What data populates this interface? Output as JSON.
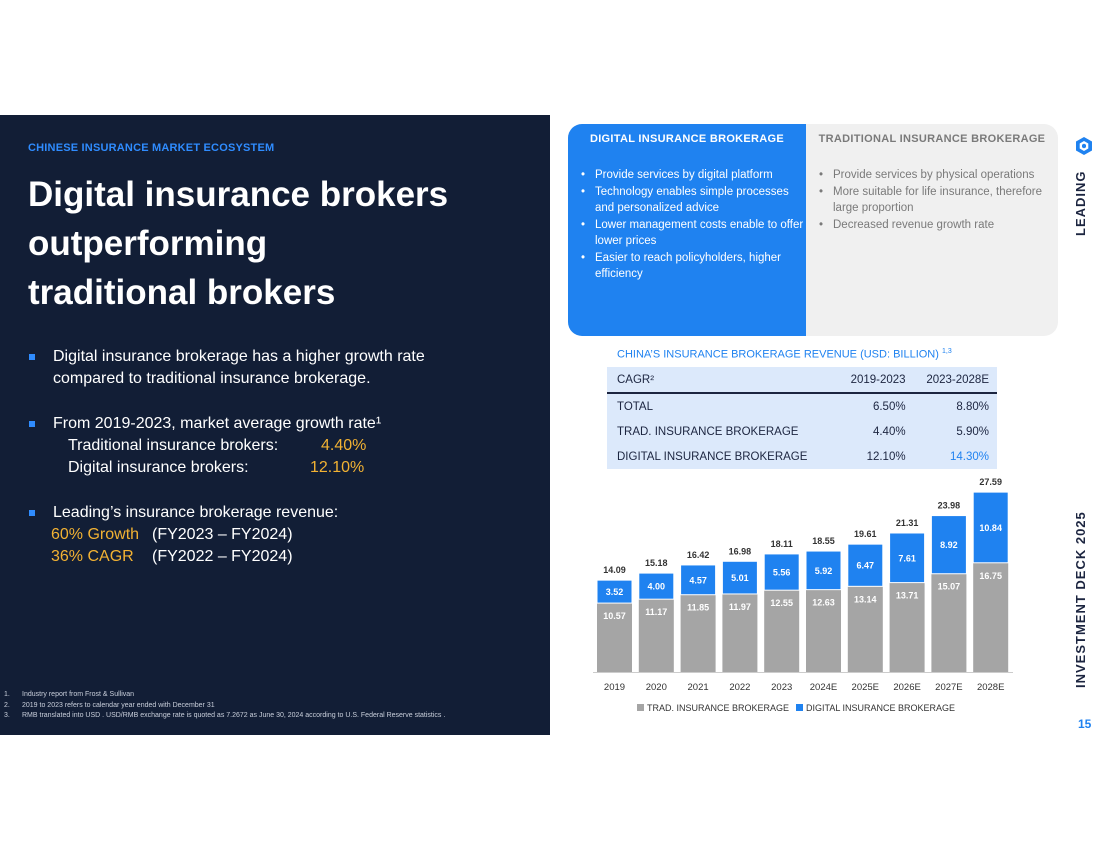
{
  "left": {
    "kicker": "CHINESE INSURANCE MARKET ECOSYSTEM",
    "headline": [
      "Digital insurance brokers",
      "outperforming",
      "traditional brokers"
    ],
    "bullet1": [
      "Digital insurance brokerage has a higher growth rate",
      "compared to traditional insurance brokerage."
    ],
    "bullet2": {
      "intro": "From 2019-2023, market average growth rate¹",
      "trad_label": "Traditional insurance brokers:",
      "trad_value": "4.40%",
      "digital_label": "Digital insurance brokers:",
      "digital_value": "12.10%"
    },
    "bullet3": {
      "intro": "Leading’s insurance brokerage revenue:",
      "growth_label": "60% Growth",
      "growth_period": "(FY2023 – FY2024)",
      "cagr_label": "36% CAGR",
      "cagr_period": "(FY2022 – FY2024)"
    },
    "footnotes": [
      {
        "num": "1.",
        "text": "Industry report from Frost & Sullivan"
      },
      {
        "num": "2.",
        "text": "2019 to 2023 refers to calendar year ended with December 31"
      },
      {
        "num": "3.",
        "text": "RMB translated into USD . USD/RMB exchange rate is quoted as 7.2672 as June 30, 2024 according to U.S. Federal Reserve statistics ."
      }
    ]
  },
  "comparison": {
    "digital": {
      "title": "DIGITAL  INSURANCE  BROKERAGE",
      "items": [
        "Provide services by digital platform",
        "Technology enables simple processes and personalized advice",
        "Lower management costs enable to offer lower prices",
        "Easier to reach policyholders, higher efficiency"
      ]
    },
    "traditional": {
      "title": "TRADITIONAL  INSURANCE BROKERAGE",
      "items": [
        "Provide services by physical operations",
        "More suitable for life insurance, therefore large proportion",
        "Decreased revenue growth rate"
      ]
    }
  },
  "table": {
    "title": "CHINA’S INSURANCE BROKERAGE REVENUE (USD: BILLION)",
    "title_sup": "1,3",
    "header": [
      "CAGR²",
      "2019-2023",
      "2023-2028E"
    ],
    "rows": [
      [
        "TOTAL",
        "6.50%",
        "8.80%"
      ],
      [
        "TRAD. INSURANCE BROKERAGE",
        "4.40%",
        "5.90%"
      ],
      [
        "DIGITAL INSURANCE BROKERAGE",
        "12.10%",
        "14.30%"
      ]
    ]
  },
  "side": {
    "leading": "LEADING",
    "deck": "INVESTMENT DECK 2025",
    "page": "15"
  },
  "colors": {
    "navy": "#121e36",
    "blue": "#1f82f0",
    "gold": "#f2b233",
    "gray_bar": "#a5a5a5"
  },
  "chart_data": {
    "type": "bar",
    "stacked": true,
    "categories": [
      "2019",
      "2020",
      "2021",
      "2022",
      "2023",
      "2024E",
      "2025E",
      "2026E",
      "2027E",
      "2028E"
    ],
    "series": [
      {
        "name": "TRAD. INSURANCE BROKERAGE",
        "color": "#a5a5a5",
        "values": [
          10.57,
          11.17,
          11.85,
          11.97,
          12.55,
          12.63,
          13.14,
          13.71,
          15.07,
          16.75
        ]
      },
      {
        "name": "DIGITAL INSURANCE BROKERAGE",
        "color": "#1f82f0",
        "values": [
          3.52,
          4.0,
          4.57,
          5.01,
          5.56,
          5.92,
          6.47,
          7.61,
          8.92,
          10.84
        ]
      }
    ],
    "totals": [
      14.09,
      15.18,
      16.42,
      16.98,
      18.11,
      18.55,
      19.61,
      21.31,
      23.98,
      27.59
    ],
    "legend_position": "bottom",
    "grid": false
  }
}
